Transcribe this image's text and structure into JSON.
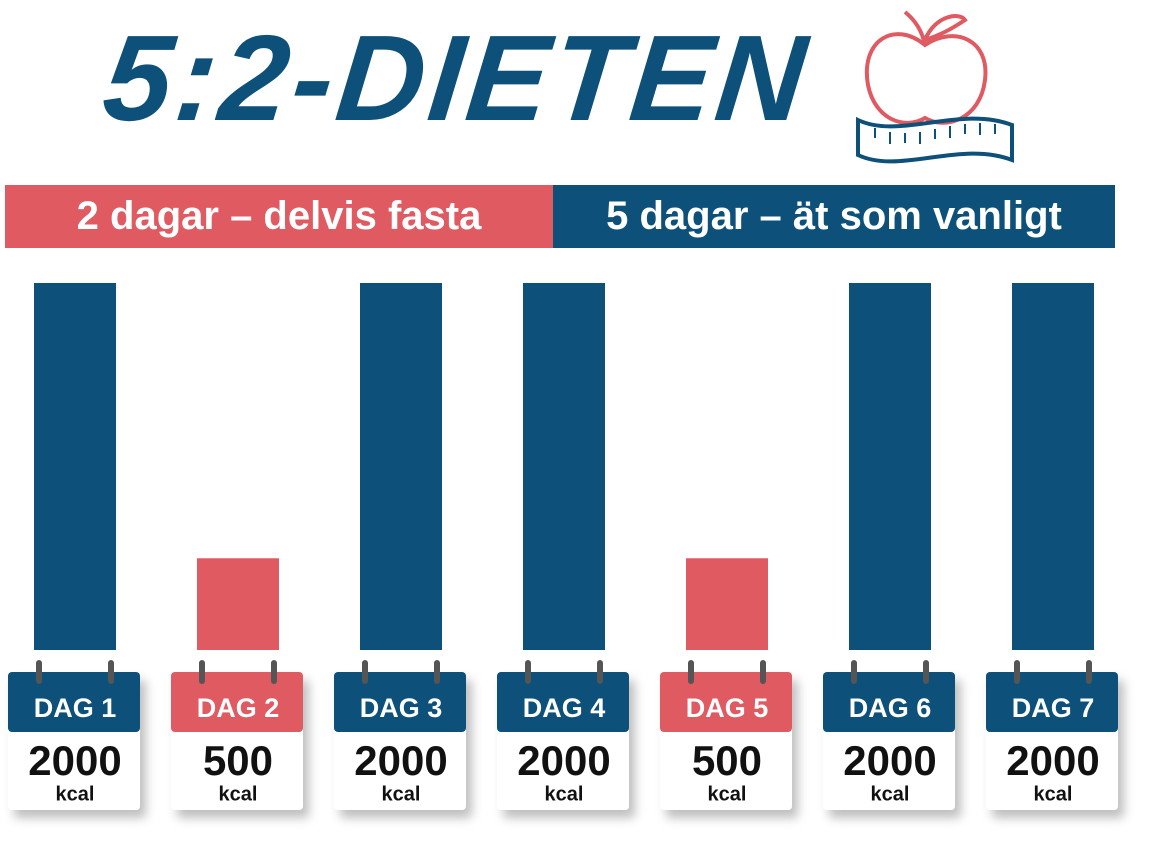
{
  "chart_data": {
    "type": "bar",
    "title": "5:2-DIETEN",
    "legend": [
      {
        "label": "2 dagar – delvis fasta",
        "color": "#e05a62"
      },
      {
        "label": "5 dagar – ät som vanligt",
        "color": "#0d5079"
      }
    ],
    "categories": [
      "DAG 1",
      "DAG 2",
      "DAG 3",
      "DAG 4",
      "DAG 5",
      "DAG 6",
      "DAG 7"
    ],
    "values": [
      2000,
      500,
      2000,
      2000,
      500,
      2000,
      2000
    ],
    "colors": [
      "#0d5079",
      "#e05a62",
      "#0d5079",
      "#0d5079",
      "#e05a62",
      "#0d5079",
      "#0d5079"
    ],
    "unit": "kcal"
  }
}
